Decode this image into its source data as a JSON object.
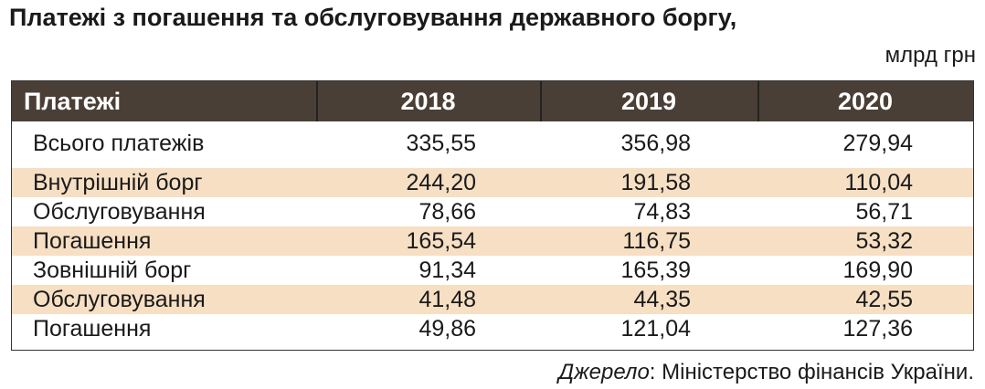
{
  "header": {
    "title": "Платежі з погашення та обслуговування державного боргу,",
    "unit": "млрд грн"
  },
  "table": {
    "columns": [
      "Платежі",
      "2018",
      "2019",
      "2020"
    ],
    "rows": [
      [
        "Всього платежів",
        "335,55",
        "356,98",
        "279,94"
      ],
      [
        "Внутрішній борг",
        "244,20",
        "191,58",
        "110,04"
      ],
      [
        "Обслуговування",
        "78,66",
        "74,83",
        "56,71"
      ],
      [
        "Погашення",
        "165,54",
        "116,75",
        "53,32"
      ],
      [
        "Зовнішній борг",
        "91,34",
        "165,39",
        "169,90"
      ],
      [
        "Обслуговування",
        "41,48",
        "44,35",
        "42,55"
      ],
      [
        "Погашення",
        "49,86",
        "121,04",
        "127,36"
      ]
    ]
  },
  "source": {
    "label": "Джерело",
    "text": ": Міністерство фінансів України."
  }
}
